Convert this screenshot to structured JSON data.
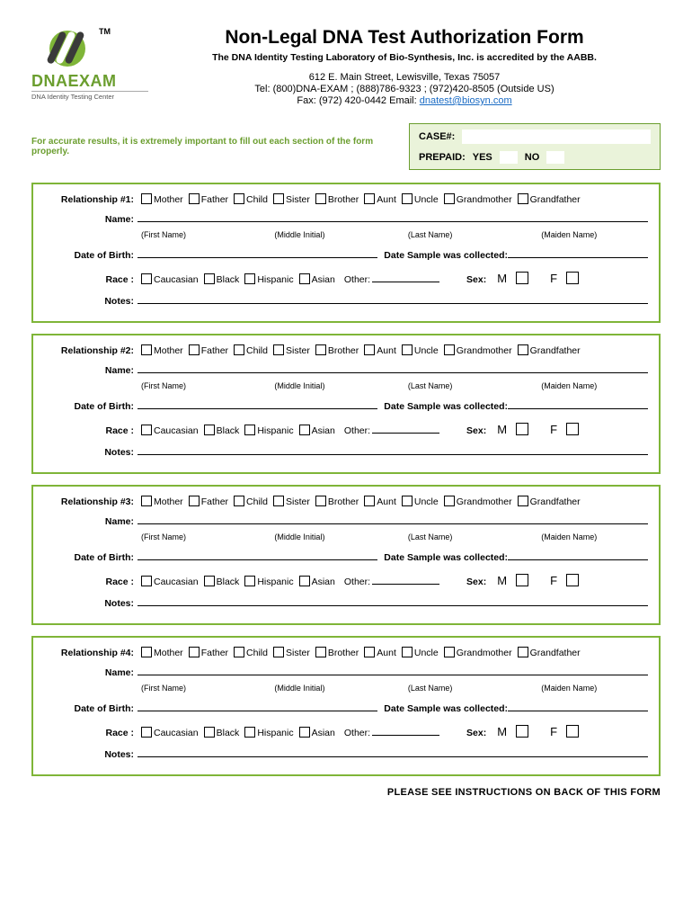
{
  "colors": {
    "brand_green": "#7fb538",
    "brand_green_dark": "#6b9e2f",
    "box_bg": "#eaf3da",
    "link": "#1a6bc4",
    "text": "#000000",
    "background": "#ffffff"
  },
  "header": {
    "logo_name": "DNAEXAM",
    "logo_sub": "DNA Identity Testing Center",
    "tm": "TM",
    "title": "Non-Legal DNA  Test Authorization Form",
    "accreditation": "The DNA Identity Testing  Laboratory of Bio-Synthesis, Inc. is accredited by the AABB.",
    "address": "612 E. Main Street, Lewisville, Texas 75057",
    "tel": "Tel: (800)DNA-EXAM ; (888)786-9323  ;  (972)420-8505 (Outside US)",
    "fax_prefix": "Fax: (972) 420-0442 Email: ",
    "email": "dnatest@biosyn.com"
  },
  "case_box": {
    "notice": "For accurate results, it is extremely important to fill out each section of the form properly.",
    "case_label": "CASE#:",
    "prepaid_label": "PREPAID:",
    "yes": "YES",
    "no": "NO"
  },
  "relationship_options": [
    "Mother",
    "Father",
    "Child",
    "Sister",
    "Brother",
    "Aunt",
    "Uncle",
    "Grandmother",
    "Grandfather"
  ],
  "race_options": [
    "Caucasian",
    "Black",
    "Hispanic",
    "Asian"
  ],
  "field_labels": {
    "name": "Name:",
    "dob": "Date of Birth:",
    "sample_date": "Date Sample was collected:",
    "race": "Race :",
    "other": "Other:",
    "sex": "Sex:",
    "m": "M",
    "f": "F",
    "notes": "Notes:"
  },
  "name_hints": [
    "(First Name)",
    "(Middle Initial)",
    "(Last Name)",
    "(Maiden Name)"
  ],
  "sections": [
    {
      "label": "Relationship #1:"
    },
    {
      "label": "Relationship #2:"
    },
    {
      "label": "Relationship #3:"
    },
    {
      "label": "Relationship #4:"
    }
  ],
  "footer": "PLEASE SEE INSTRUCTIONS ON BACK OF THIS FORM"
}
